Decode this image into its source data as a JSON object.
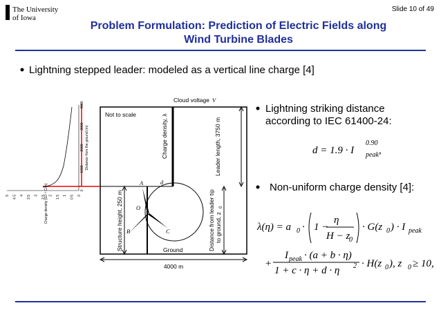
{
  "header": {
    "logo": [
      "The University",
      "of Iowa"
    ],
    "slide_number": "Slide 10 of 49",
    "title": [
      "Problem Formulation: Prediction of Electric Fields along",
      "Wind Turbine Blades"
    ]
  },
  "bullets": {
    "main": "Lightning stepped leader: modeled as a vertical line charge [4]",
    "striking": [
      "Lightning striking distance",
      "according to IEC 61400-24:"
    ],
    "density": "Non-uniform charge density [4]:"
  },
  "figure": {
    "cloud": "Cloud voltage",
    "cloud_symbol": "V",
    "scale_note": "Not to scale",
    "charge_density": "Charge density, λ",
    "leader_length": "Leader length, 3750 m",
    "point_a": "A",
    "point_d": "d",
    "point_o": "O",
    "point_b": "B",
    "point_c": "C",
    "structure_height": "Structure height, 250 m",
    "tip_distance": [
      "Distance from leader tip",
      "to ground, z"
    ],
    "tip_sub": "0",
    "ground": "Ground",
    "width": "4000 m",
    "inset": {
      "y_label": "Distance from the ground (m)",
      "y_ticks": [
        "0",
        "1000",
        "2000",
        "3000",
        "4000"
      ],
      "x_label": "Charge density (10⁻³ C/m)",
      "x_ticks": [
        "5",
        "4.5",
        "4",
        "3.5",
        "3",
        "2.5",
        "2",
        "1.5",
        "1",
        "0.5",
        "0"
      ]
    }
  },
  "equations": {
    "strike": {
      "lhs": "d = 1.9 · I",
      "sup": "0.90",
      "sub": "peak",
      "tail": ","
    },
    "density": {
      "lhs": "λ(η) = a",
      "a_sub": "0",
      "mid": "·",
      "one": "1 −",
      "num": "η",
      "den": "H − z",
      "den_sub": "0",
      "g": "· G(z",
      "g_sub": "0",
      "g_tail": ") · I",
      "peak": "peak",
      "plus": "+",
      "num2": "I",
      "num2_sub": "peak",
      "num2_tail": "· (a + b · η)",
      "den2": "1 + c · η + d · η",
      "den2_sup": "2",
      "h": "· H(z",
      "h_sub": "0",
      "h_tail": "),   z",
      "cond_sub": "0",
      "cond": "≥ 10,"
    }
  }
}
